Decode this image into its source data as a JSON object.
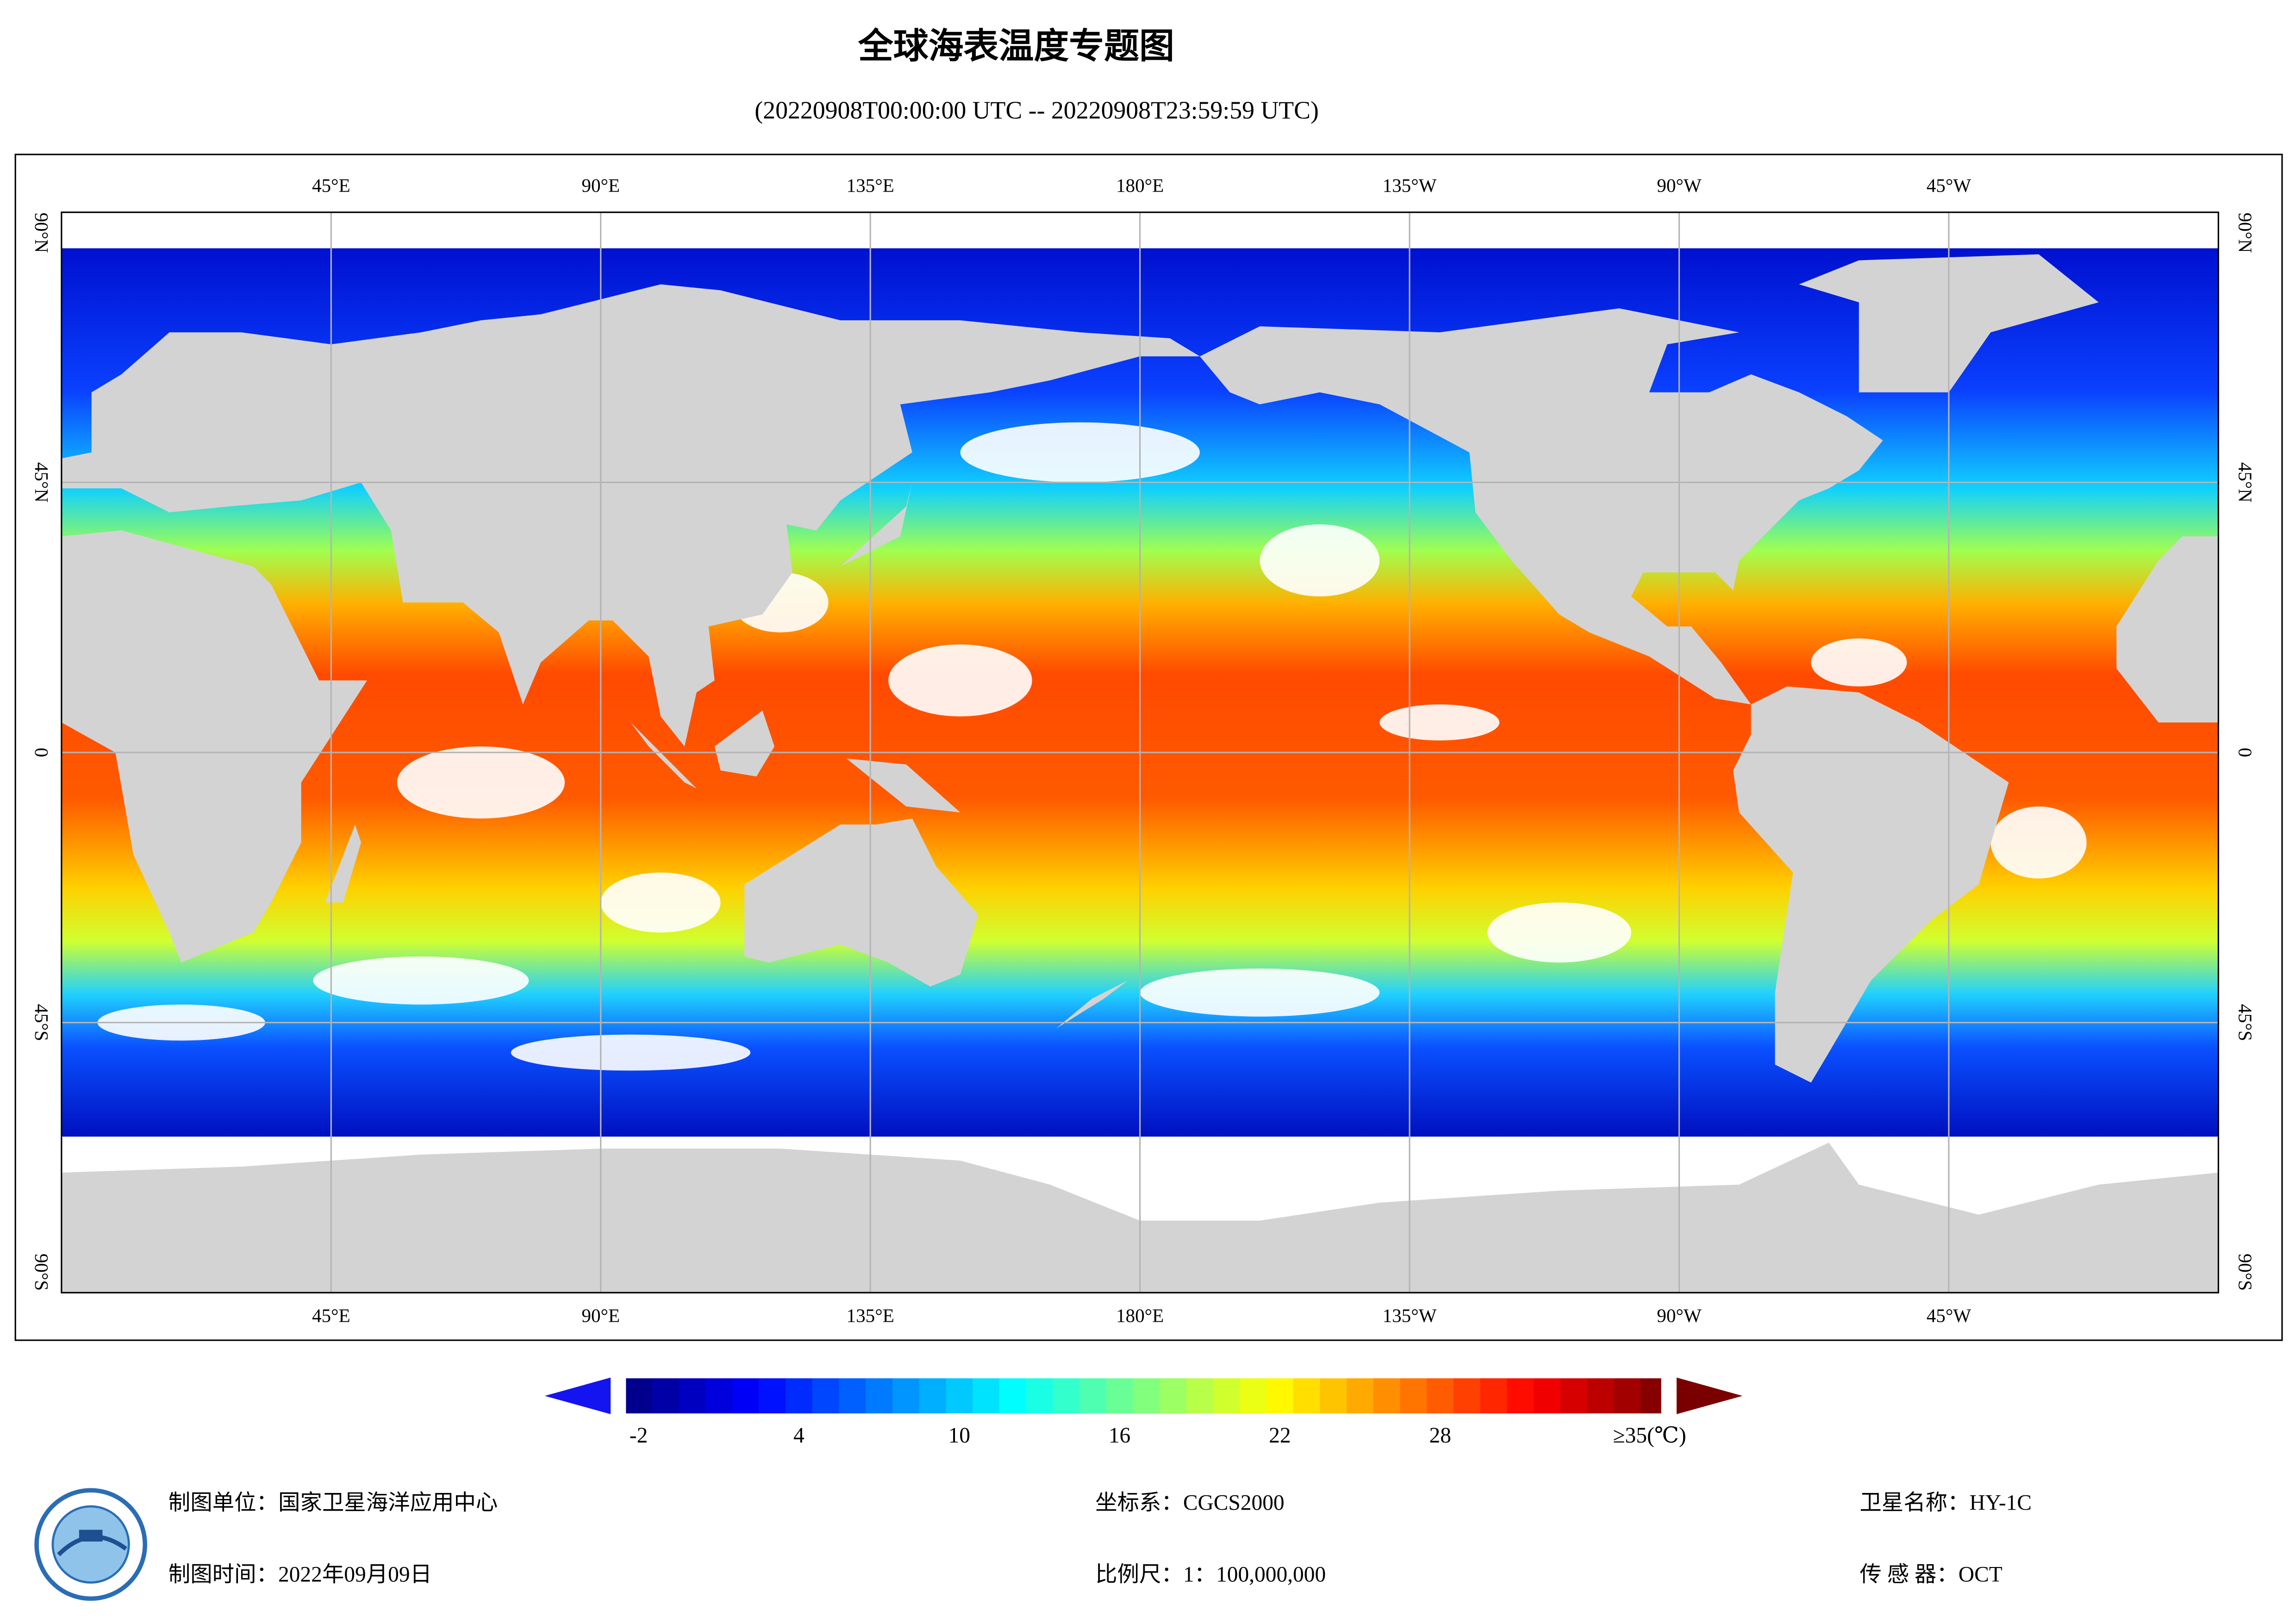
{
  "header": {
    "title": "全球海表温度专题图",
    "subtitle": "(20220908T00:00:00 UTC -- 20220908T23:59:59 UTC)"
  },
  "map": {
    "lon_range": [
      0,
      360
    ],
    "lat_range": [
      90,
      -90
    ],
    "lon_ticks": [
      {
        "value": 45,
        "label": "45°E"
      },
      {
        "value": 90,
        "label": "90°E"
      },
      {
        "value": 135,
        "label": "135°E"
      },
      {
        "value": 180,
        "label": "180°E"
      },
      {
        "value": 225,
        "label": "135°W"
      },
      {
        "value": 270,
        "label": "90°W"
      },
      {
        "value": 315,
        "label": "45°W"
      }
    ],
    "lat_ticks": [
      {
        "value": 90,
        "label": "90°N"
      },
      {
        "value": 45,
        "label": "45°N"
      },
      0,
      {
        "value": -45,
        "label": "45°S"
      },
      {
        "value": -90,
        "label": "90°S"
      }
    ]
  },
  "colorbar": {
    "ticks": [
      -2,
      4,
      10,
      16,
      22,
      28
    ],
    "max_label": "≥35(℃)",
    "range": [
      -2.5,
      36.3
    ],
    "under_color": "#1414f0",
    "over_color": "#7a0000"
  },
  "footer": {
    "producer": "制图单位：国家卫星海洋应用中心",
    "date": "制图时间：2022年09月09日",
    "crs": "坐标系：CGCS2000",
    "scale": "比例尺：1：100,000,000",
    "satellite": "卫星名称：HY-1C",
    "sensor": "传 感 器：OCT"
  }
}
